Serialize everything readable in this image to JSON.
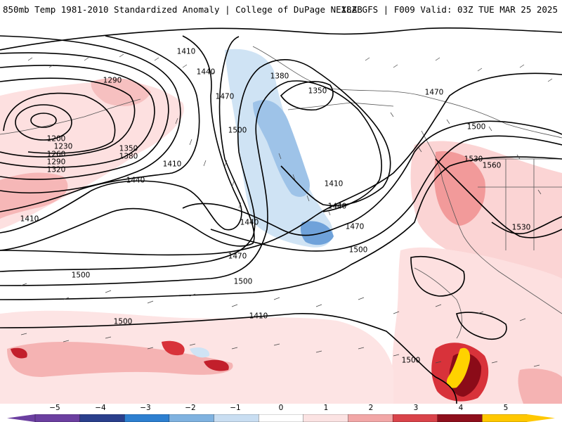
{
  "header": {
    "title_left": "850mb Temp 1981-2010 Standardized Anomaly | College of DuPage NEXLAB",
    "title_right": "18Z GFS | F009 Valid: 03Z TUE MAR 25 2025"
  },
  "map": {
    "field": "850mb temperature standardized anomaly",
    "contour_field": "geopotential height (dam)",
    "contour_labels": [
      "1410",
      "1380",
      "1350",
      "1440",
      "1470",
      "1500",
      "1290",
      "1200",
      "1230",
      "1260",
      "1290",
      "1320",
      "1350",
      "1380",
      "1410",
      "1440",
      "1410",
      "1440",
      "1470",
      "1500",
      "1410",
      "1470",
      "1500",
      "1530",
      "1560",
      "1530",
      "1500",
      "1500",
      "1500",
      "1440",
      "1470",
      "1410",
      "1500"
    ],
    "colors": {
      "strong_negative": "#3b6ec4",
      "negative": "#9ec3e8",
      "weak_negative": "#cfe3f4",
      "weak_positive": "#fde0e0",
      "positive": "#f4a6a6",
      "strong_positive": "#d8323a",
      "extreme_positive": "#8b0b18",
      "max_positive": "#ffd200"
    }
  },
  "colorbar": {
    "labels": [
      "−5",
      "−4",
      "−3",
      "−2",
      "−1",
      "0",
      "1",
      "2",
      "3",
      "4",
      "5"
    ],
    "colors": [
      "#6b3fa0",
      "#2a3f8c",
      "#2d7fd0",
      "#7fb2e0",
      "#c9def2",
      "#ffffff",
      "#fbe3e3",
      "#f2a7a7",
      "#d9434a",
      "#8e0f1c",
      "#ffc800"
    ]
  }
}
